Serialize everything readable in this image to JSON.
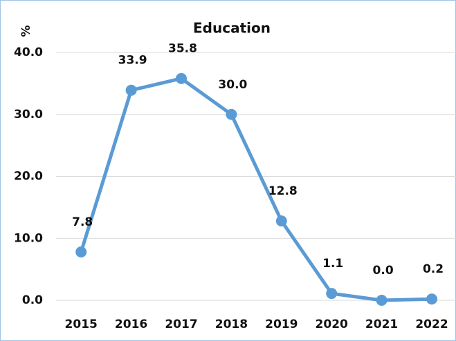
{
  "chart_data": {
    "type": "line",
    "title": "Education",
    "y_label": "%",
    "categories": [
      "2015",
      "2016",
      "2017",
      "2018",
      "2019",
      "2020",
      "2021",
      "2022"
    ],
    "values": [
      7.8,
      33.9,
      35.8,
      30.0,
      12.8,
      1.1,
      0.0,
      0.2
    ],
    "value_labels": [
      "7.8",
      "33.9",
      "35.8",
      "30.0",
      "12.8",
      "1.1",
      "0.0",
      "0.2"
    ],
    "color": "#5b9bd5",
    "ylim": [
      0,
      40
    ],
    "yticks": [
      {
        "value": 0,
        "label": "0.0"
      },
      {
        "value": 10,
        "label": "10.0"
      },
      {
        "value": 20,
        "label": "20.0"
      },
      {
        "value": 30,
        "label": "30.0"
      },
      {
        "value": 40,
        "label": "40.0"
      }
    ],
    "grid": true
  }
}
